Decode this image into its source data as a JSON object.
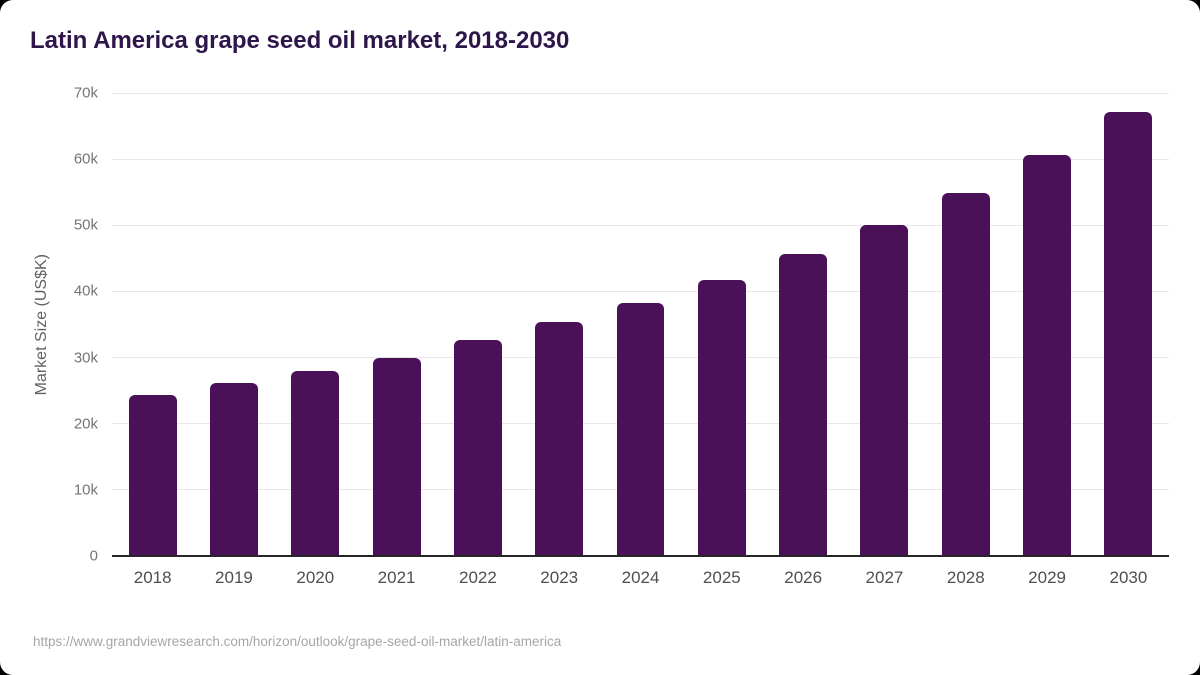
{
  "header": {
    "title": "Latin America grape seed oil market, 2018-2030"
  },
  "footer": {
    "source_url": "https://www.grandviewresearch.com/horizon/outlook/grape-seed-oil-market/latin-america"
  },
  "colors": {
    "bar": "#4a1058",
    "title_text": "#2e164b",
    "axis_line": "#262626",
    "gridline": "#e7e7e7",
    "y_tick_label": "#757575",
    "x_tick_label": "#4f4f4f",
    "footer_text": "#a6a6a6",
    "background": "#ffffff"
  },
  "chart_data": {
    "type": "bar",
    "title": "Latin America grape seed oil market, 2018-2030",
    "categories": [
      "2018",
      "2019",
      "2020",
      "2021",
      "2022",
      "2023",
      "2024",
      "2025",
      "2026",
      "2027",
      "2028",
      "2029",
      "2030"
    ],
    "values": [
      24300,
      26200,
      27900,
      30000,
      32600,
      35400,
      38300,
      41700,
      45600,
      50000,
      54900,
      60700,
      67200
    ],
    "xlabel": "",
    "ylabel": "Market Size (US$K)",
    "ylim": [
      0,
      70000
    ],
    "ytick_labels": [
      "0",
      "10k",
      "20k",
      "30k",
      "40k",
      "50k",
      "60k",
      "70k"
    ],
    "grid": true,
    "legend": false,
    "bar_color": "#4a1058"
  }
}
